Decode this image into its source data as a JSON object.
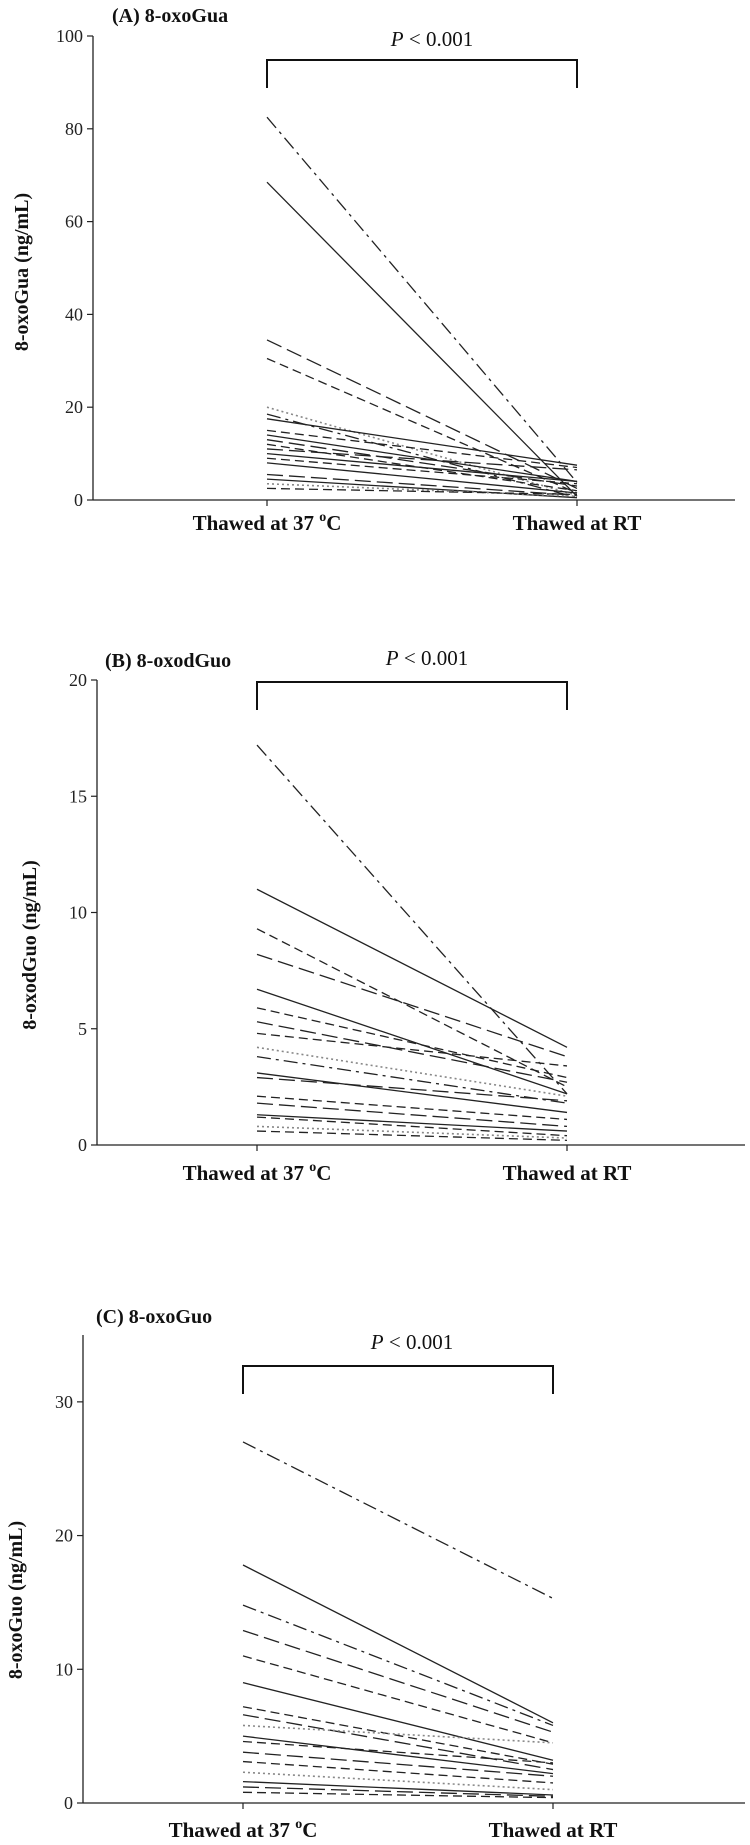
{
  "chart_data": [
    {
      "type": "line",
      "title": "(A) 8-oxoGua",
      "ylabel": "8-oxoGua (ng/mL)",
      "categories": [
        "Thawed at  37 °C",
        "Thawed at RT"
      ],
      "ylim": [
        0,
        100
      ],
      "yticks": [
        0,
        20,
        40,
        60,
        80,
        100
      ],
      "annotation": "P < 0.001",
      "series": [
        {
          "values": [
            82.5,
            3.8
          ],
          "style": "dashdot"
        },
        {
          "values": [
            68.5,
            0.8
          ],
          "style": "solid"
        },
        {
          "values": [
            34.5,
            2.5
          ],
          "style": "longdash"
        },
        {
          "values": [
            30.5,
            1.5
          ],
          "style": "dashed"
        },
        {
          "values": [
            20.0,
            1.0
          ],
          "style": "dotted"
        },
        {
          "values": [
            18.5,
            0.5
          ],
          "style": "dashdot"
        },
        {
          "values": [
            17.5,
            7.5
          ],
          "style": "solid"
        },
        {
          "values": [
            15.0,
            7.0
          ],
          "style": "dashed"
        },
        {
          "values": [
            14.0,
            4.0
          ],
          "style": "solid"
        },
        {
          "values": [
            13.0,
            3.0
          ],
          "style": "longdash"
        },
        {
          "values": [
            12.0,
            2.0
          ],
          "style": "dashed"
        },
        {
          "values": [
            11.0,
            6.5
          ],
          "style": "longdash"
        },
        {
          "values": [
            10.0,
            4.0
          ],
          "style": "solid"
        },
        {
          "values": [
            9.0,
            3.5
          ],
          "style": "dashed"
        },
        {
          "values": [
            8.0,
            1.5
          ],
          "style": "solid"
        },
        {
          "values": [
            5.5,
            1.0
          ],
          "style": "longdash"
        },
        {
          "values": [
            4.5,
            0.5
          ],
          "style": "solid"
        },
        {
          "values": [
            3.5,
            0.8
          ],
          "style": "dotted"
        },
        {
          "values": [
            2.5,
            1.2
          ],
          "style": "dashed"
        }
      ]
    },
    {
      "type": "line",
      "title": "(B) 8-oxodGuo",
      "ylabel": "8-oxodGuo (ng/mL)",
      "categories": [
        "Thawed at  37 °C",
        "Thawed at RT"
      ],
      "ylim": [
        0,
        20
      ],
      "yticks": [
        0,
        5,
        10,
        15,
        20
      ],
      "annotation": "P < 0.001",
      "series": [
        {
          "values": [
            17.2,
            2.2
          ],
          "style": "dashdot"
        },
        {
          "values": [
            11.0,
            4.2
          ],
          "style": "solid"
        },
        {
          "values": [
            9.3,
            2.5
          ],
          "style": "dashed"
        },
        {
          "values": [
            8.2,
            3.8
          ],
          "style": "longdash"
        },
        {
          "values": [
            6.7,
            2.2
          ],
          "style": "solid"
        },
        {
          "values": [
            5.9,
            2.9
          ],
          "style": "dashed"
        },
        {
          "values": [
            5.3,
            2.7
          ],
          "style": "longdash"
        },
        {
          "values": [
            4.8,
            3.4
          ],
          "style": "dashed"
        },
        {
          "values": [
            4.2,
            2.1
          ],
          "style": "dotted"
        },
        {
          "values": [
            3.8,
            1.8
          ],
          "style": "dashdot"
        },
        {
          "values": [
            3.1,
            1.4
          ],
          "style": "solid"
        },
        {
          "values": [
            2.9,
            1.9
          ],
          "style": "longdash"
        },
        {
          "values": [
            2.1,
            1.1
          ],
          "style": "dashed"
        },
        {
          "values": [
            1.8,
            0.8
          ],
          "style": "longdash"
        },
        {
          "values": [
            1.3,
            0.6
          ],
          "style": "solid"
        },
        {
          "values": [
            1.2,
            0.4
          ],
          "style": "dashed"
        },
        {
          "values": [
            0.8,
            0.3
          ],
          "style": "dotted"
        },
        {
          "values": [
            0.6,
            0.2
          ],
          "style": "dashed"
        }
      ]
    },
    {
      "type": "line",
      "title": "(C) 8-oxoGuo",
      "ylabel": "8-oxoGuo (ng/mL)",
      "categories": [
        "Thawed at  37 °C",
        "Thawed at RT"
      ],
      "ylim": [
        0,
        35
      ],
      "yticks": [
        0,
        10,
        20,
        30
      ],
      "annotation": "P < 0.001",
      "series": [
        {
          "values": [
            27.0,
            15.3
          ],
          "style": "dashdot"
        },
        {
          "values": [
            17.8,
            6.0
          ],
          "style": "solid"
        },
        {
          "values": [
            14.8,
            5.8
          ],
          "style": "dashdot"
        },
        {
          "values": [
            12.9,
            5.3
          ],
          "style": "longdash"
        },
        {
          "values": [
            11.0,
            4.5
          ],
          "style": "dashed"
        },
        {
          "values": [
            9.0,
            3.2
          ],
          "style": "solid"
        },
        {
          "values": [
            7.2,
            2.9
          ],
          "style": "dashed"
        },
        {
          "values": [
            6.6,
            2.5
          ],
          "style": "longdash"
        },
        {
          "values": [
            5.8,
            4.5
          ],
          "style": "dotted"
        },
        {
          "values": [
            5.0,
            2.2
          ],
          "style": "solid"
        },
        {
          "values": [
            4.6,
            3.0
          ],
          "style": "dashed"
        },
        {
          "values": [
            3.8,
            2.0
          ],
          "style": "longdash"
        },
        {
          "values": [
            3.1,
            1.5
          ],
          "style": "dashed"
        },
        {
          "values": [
            2.3,
            1.0
          ],
          "style": "dotted"
        },
        {
          "values": [
            1.6,
            0.6
          ],
          "style": "solid"
        },
        {
          "values": [
            1.2,
            0.5
          ],
          "style": "longdash"
        },
        {
          "values": [
            0.8,
            0.4
          ],
          "style": "dashed"
        }
      ]
    }
  ]
}
